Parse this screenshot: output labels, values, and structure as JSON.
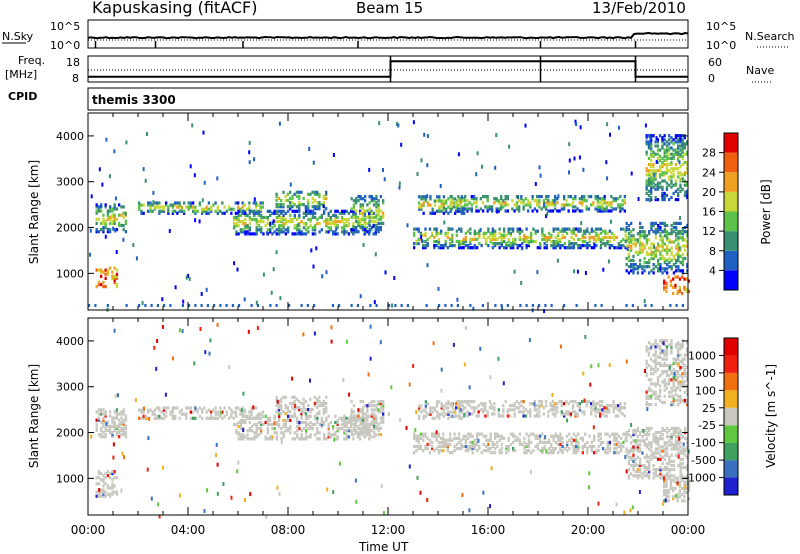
{
  "header": {
    "station": "Kapuskasing (fitACF)",
    "beam": "Beam 15",
    "date": "13/Feb/2010"
  },
  "strip_labels": {
    "nsky": "N.Sky",
    "nsky_ticks": [
      "10^5",
      "10^0"
    ],
    "nsearch": "N.Search",
    "freq": "Freq.",
    "freq_unit": "[MHz]",
    "freq_ticks": [
      "18",
      "8"
    ],
    "nave": "Nave",
    "nave_ticks": [
      "60",
      "0"
    ],
    "cpid": "CPID",
    "nsearch_ticks": [
      "10^5",
      "10^0"
    ]
  },
  "cpid_name": "themis 3300",
  "chart_data": [
    {
      "type": "heatmap",
      "panel": "power",
      "ylabel": "Slant Range [km]",
      "yticks": [
        "1000",
        "2000",
        "3000",
        "4000"
      ],
      "ylim": [
        200,
        4500
      ],
      "xlim": [
        "00:00",
        "24:00"
      ],
      "colorbar_label": "Power [dB]",
      "colorbar_ticks": [
        "4",
        "8",
        "12",
        "16",
        "20",
        "24",
        "28"
      ],
      "colors": [
        "#0000ff",
        "#2060c0",
        "#3a8f70",
        "#5cc24a",
        "#c8d838",
        "#f0a020",
        "#f06010",
        "#e00000"
      ],
      "bands": [
        {
          "t0": 0.3,
          "t1": 1.2,
          "r0": 700,
          "r1": 1150
        },
        {
          "t0": 0.3,
          "t1": 1.5,
          "r0": 1900,
          "r1": 2500
        },
        {
          "t0": 2.0,
          "t1": 7.0,
          "r0": 2300,
          "r1": 2550
        },
        {
          "t0": 5.8,
          "t1": 11.5,
          "r0": 1850,
          "r1": 2350
        },
        {
          "t0": 7.5,
          "t1": 9.5,
          "r0": 2400,
          "r1": 2800
        },
        {
          "t0": 10.5,
          "t1": 11.8,
          "r0": 1900,
          "r1": 2700
        },
        {
          "t0": 13.2,
          "t1": 15.0,
          "r0": 2300,
          "r1": 2700
        },
        {
          "t0": 13.0,
          "t1": 21.5,
          "r0": 1550,
          "r1": 2000
        },
        {
          "t0": 14.5,
          "t1": 21.5,
          "r0": 2350,
          "r1": 2700
        },
        {
          "t0": 21.5,
          "t1": 24.0,
          "r0": 1000,
          "r1": 2100
        },
        {
          "t0": 22.3,
          "t1": 24.0,
          "r0": 2600,
          "r1": 4000
        },
        {
          "t0": 23.0,
          "t1": 24.0,
          "r0": 550,
          "r1": 950
        }
      ]
    },
    {
      "type": "heatmap",
      "panel": "velocity",
      "ylabel": "Slant Range [km]",
      "yticks": [
        "1000",
        "2000",
        "3000",
        "4000"
      ],
      "ylim": [
        200,
        4500
      ],
      "xlim": [
        "00:00",
        "24:00"
      ],
      "xticks": [
        "00:00",
        "04:00",
        "08:00",
        "12:00",
        "16:00",
        "20:00",
        "00:00"
      ],
      "xlabel": "Time UT",
      "colorbar_label": "Velocity [m s^-1]",
      "colorbar_ticks": [
        "1000",
        "500",
        "100",
        "25",
        "-25",
        "-100",
        "-500",
        "-1000"
      ],
      "colors": [
        "#2020d0",
        "#3a70c0",
        "#40a060",
        "#60c840",
        "#c8c8c0",
        "#f0b020",
        "#f07010",
        "#f02010",
        "#e00000"
      ],
      "bands": [
        {
          "t0": 0.3,
          "t1": 1.2,
          "r0": 600,
          "r1": 1150
        },
        {
          "t0": 0.3,
          "t1": 1.5,
          "r0": 1900,
          "r1": 2500
        },
        {
          "t0": 2.0,
          "t1": 7.0,
          "r0": 2300,
          "r1": 2550
        },
        {
          "t0": 5.8,
          "t1": 11.5,
          "r0": 1850,
          "r1": 2350
        },
        {
          "t0": 7.5,
          "t1": 9.5,
          "r0": 2400,
          "r1": 2800
        },
        {
          "t0": 10.5,
          "t1": 11.8,
          "r0": 1900,
          "r1": 2700
        },
        {
          "t0": 13.2,
          "t1": 15.0,
          "r0": 2300,
          "r1": 2700
        },
        {
          "t0": 13.0,
          "t1": 21.5,
          "r0": 1550,
          "r1": 2000
        },
        {
          "t0": 14.5,
          "t1": 21.5,
          "r0": 2350,
          "r1": 2700
        },
        {
          "t0": 21.5,
          "t1": 24.0,
          "r0": 1000,
          "r1": 2100
        },
        {
          "t0": 22.3,
          "t1": 24.0,
          "r0": 2600,
          "r1": 4000
        },
        {
          "t0": 23.0,
          "t1": 24.0,
          "r0": 500,
          "r1": 1050
        }
      ]
    }
  ],
  "frequency_steps": [
    {
      "t0": 0,
      "t1": 12.1,
      "mhz": 10
    },
    {
      "t0": 12.1,
      "t1": 21.9,
      "mhz": 16
    },
    {
      "t0": 21.9,
      "t1": 24,
      "mhz": 10
    }
  ],
  "frequency_range": [
    8,
    18
  ],
  "nave_range": [
    0,
    60
  ],
  "nsky_range": [
    0,
    5
  ]
}
